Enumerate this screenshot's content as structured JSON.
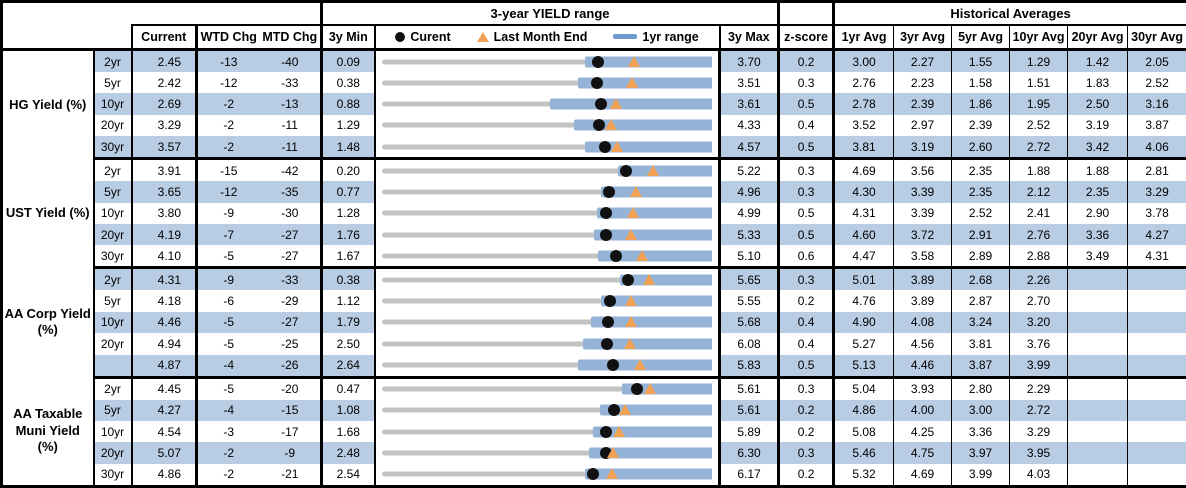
{
  "header": {
    "range_title": "3-year YIELD range",
    "hist_title": "Historical Averages",
    "col_current": "Current",
    "col_wtd": "WTD Chg",
    "col_mtd": "MTD Chg",
    "col_min": "3y Min",
    "col_max": "3y Max",
    "col_z": "z-score",
    "avg_cols": [
      "1yr Avg",
      "3yr Avg",
      "5yr Avg",
      "10yr Avg",
      "20yr Avg",
      "30yr Avg"
    ],
    "legend": {
      "current": "Curent",
      "last_month": "Last Month End",
      "range": "1yr range"
    }
  },
  "colors": {
    "stripe_blue": "#b8cce4",
    "bar_blue": "#95b3d7",
    "legend_dash_blue": "#6f9bd0",
    "track_gray": "#c3c3c3",
    "marker_orange": "#f2a254",
    "marker_black": "#111111",
    "border_black": "#000000"
  },
  "chart_data": {
    "type": "bullet-range-table",
    "note": "Each row: gray track = 3y min..3y max, blue bar = 1yr range (low estimated from pixels, high = 3y max), black dot = current, orange triangle = last month end (current - MTD/100).",
    "sections": [
      {
        "label_lines": [
          "HG Yield (%)"
        ],
        "rows": [
          {
            "tenor": "2yr",
            "current": "2.45",
            "wtd": "-13",
            "mtd": "-40",
            "min": "0.09",
            "max": "3.70",
            "z": "0.2",
            "lme": 2.85,
            "yr1_low": 2.31,
            "avgs": [
              "3.00",
              "2.27",
              "1.55",
              "1.29",
              "1.42",
              "2.05"
            ]
          },
          {
            "tenor": "5yr",
            "current": "2.42",
            "wtd": "-12",
            "mtd": "-33",
            "min": "0.38",
            "max": "3.51",
            "z": "0.3",
            "lme": 2.75,
            "yr1_low": 2.24,
            "avgs": [
              "2.76",
              "2.23",
              "1.58",
              "1.51",
              "1.83",
              "2.52"
            ]
          },
          {
            "tenor": "10yr",
            "current": "2.69",
            "wtd": "-2",
            "mtd": "-13",
            "min": "0.88",
            "max": "3.61",
            "z": "0.5",
            "lme": 2.82,
            "yr1_low": 2.27,
            "avgs": [
              "2.78",
              "2.39",
              "1.86",
              "1.95",
              "2.50",
              "3.16"
            ]
          },
          {
            "tenor": "20yr",
            "current": "3.29",
            "wtd": "-2",
            "mtd": "-11",
            "min": "1.29",
            "max": "4.33",
            "z": "0.4",
            "lme": 3.4,
            "yr1_low": 3.06,
            "avgs": [
              "3.52",
              "2.97",
              "2.39",
              "2.52",
              "3.19",
              "3.87"
            ]
          },
          {
            "tenor": "30yr",
            "current": "3.57",
            "wtd": "-2",
            "mtd": "-11",
            "min": "1.48",
            "max": "4.57",
            "z": "0.5",
            "lme": 3.68,
            "yr1_low": 3.38,
            "avgs": [
              "3.81",
              "3.19",
              "2.60",
              "2.72",
              "3.42",
              "4.06"
            ]
          }
        ]
      },
      {
        "label_lines": [
          "UST Yield (%)"
        ],
        "rows": [
          {
            "tenor": "2yr",
            "current": "3.91",
            "wtd": "-15",
            "mtd": "-42",
            "min": "0.20",
            "max": "5.22",
            "z": "0.3",
            "lme": 4.33,
            "yr1_low": 3.79,
            "avgs": [
              "4.69",
              "3.56",
              "2.35",
              "1.88",
              "1.88",
              "2.81"
            ]
          },
          {
            "tenor": "5yr",
            "current": "3.65",
            "wtd": "-12",
            "mtd": "-35",
            "min": "0.77",
            "max": "4.96",
            "z": "0.3",
            "lme": 4.0,
            "yr1_low": 3.55,
            "avgs": [
              "4.30",
              "3.39",
              "2.35",
              "2.12",
              "2.35",
              "3.29"
            ]
          },
          {
            "tenor": "10yr",
            "current": "3.80",
            "wtd": "-9",
            "mtd": "-30",
            "min": "1.28",
            "max": "4.99",
            "z": "0.5",
            "lme": 4.1,
            "yr1_low": 3.7,
            "avgs": [
              "4.31",
              "3.39",
              "2.52",
              "2.41",
              "2.90",
              "3.78"
            ]
          },
          {
            "tenor": "20yr",
            "current": "4.19",
            "wtd": "-7",
            "mtd": "-27",
            "min": "1.76",
            "max": "5.33",
            "z": "0.5",
            "lme": 4.46,
            "yr1_low": 4.06,
            "avgs": [
              "4.60",
              "3.72",
              "2.91",
              "2.76",
              "3.36",
              "4.27"
            ]
          },
          {
            "tenor": "30yr",
            "current": "4.10",
            "wtd": "-5",
            "mtd": "-27",
            "min": "1.67",
            "max": "5.10",
            "z": "0.6",
            "lme": 4.37,
            "yr1_low": 3.92,
            "avgs": [
              "4.47",
              "3.58",
              "2.89",
              "2.88",
              "3.49",
              "4.31"
            ]
          }
        ]
      },
      {
        "label_lines": [
          "AA Corp Yield",
          "(%)"
        ],
        "rows": [
          {
            "tenor": "2yr",
            "current": "4.31",
            "wtd": "-9",
            "mtd": "-33",
            "min": "0.38",
            "max": "5.65",
            "z": "0.3",
            "lme": 4.64,
            "yr1_low": 4.19,
            "avgs": [
              "5.01",
              "3.89",
              "2.68",
              "2.26",
              "",
              ""
            ]
          },
          {
            "tenor": "5yr",
            "current": "4.18",
            "wtd": "-6",
            "mtd": "-29",
            "min": "1.12",
            "max": "5.55",
            "z": "0.2",
            "lme": 4.47,
            "yr1_low": 4.06,
            "avgs": [
              "4.76",
              "3.89",
              "2.87",
              "2.70",
              "",
              ""
            ]
          },
          {
            "tenor": "10yr",
            "current": "4.46",
            "wtd": "-5",
            "mtd": "-27",
            "min": "1.79",
            "max": "5.68",
            "z": "0.4",
            "lme": 4.73,
            "yr1_low": 4.25,
            "avgs": [
              "4.90",
              "4.08",
              "3.24",
              "3.20",
              "",
              ""
            ]
          },
          {
            "tenor": "20yr",
            "current": "4.94",
            "wtd": "-5",
            "mtd": "-25",
            "min": "2.50",
            "max": "6.08",
            "z": "0.4",
            "lme": 5.19,
            "yr1_low": 4.68,
            "avgs": [
              "5.27",
              "4.56",
              "3.81",
              "3.76",
              "",
              ""
            ]
          },
          {
            "tenor": "",
            "current": "4.87",
            "wtd": "-4",
            "mtd": "-26",
            "min": "2.64",
            "max": "5.83",
            "z": "0.5",
            "lme": 5.13,
            "yr1_low": 4.54,
            "avgs": [
              "5.13",
              "4.46",
              "3.87",
              "3.99",
              "",
              ""
            ]
          }
        ]
      },
      {
        "label_lines": [
          "AA Taxable",
          "Muni Yield",
          "(%)"
        ],
        "rows": [
          {
            "tenor": "2yr",
            "current": "4.45",
            "wtd": "-5",
            "mtd": "-20",
            "min": "0.47",
            "max": "5.61",
            "z": "0.3",
            "lme": 4.65,
            "yr1_low": 4.21,
            "avgs": [
              "5.04",
              "3.93",
              "2.80",
              "2.29",
              "",
              ""
            ]
          },
          {
            "tenor": "5yr",
            "current": "4.27",
            "wtd": "-4",
            "mtd": "-15",
            "min": "1.08",
            "max": "5.61",
            "z": "0.2",
            "lme": 4.42,
            "yr1_low": 4.07,
            "avgs": [
              "4.86",
              "4.00",
              "3.00",
              "2.72",
              "",
              ""
            ]
          },
          {
            "tenor": "10yr",
            "current": "4.54",
            "wtd": "-3",
            "mtd": "-17",
            "min": "1.68",
            "max": "5.89",
            "z": "0.2",
            "lme": 4.71,
            "yr1_low": 4.38,
            "avgs": [
              "5.08",
              "4.25",
              "3.36",
              "3.29",
              "",
              ""
            ]
          },
          {
            "tenor": "20yr",
            "current": "5.07",
            "wtd": "-2",
            "mtd": "-9",
            "min": "2.48",
            "max": "6.30",
            "z": "0.3",
            "lme": 5.16,
            "yr1_low": 4.88,
            "avgs": [
              "5.46",
              "4.75",
              "3.97",
              "3.95",
              "",
              ""
            ]
          },
          {
            "tenor": "30yr",
            "current": "4.86",
            "wtd": "-2",
            "mtd": "-21",
            "min": "2.54",
            "max": "6.17",
            "z": "0.2",
            "lme": 5.07,
            "yr1_low": 4.77,
            "avgs": [
              "5.32",
              "4.69",
              "3.99",
              "4.03",
              "",
              ""
            ]
          }
        ]
      }
    ]
  }
}
